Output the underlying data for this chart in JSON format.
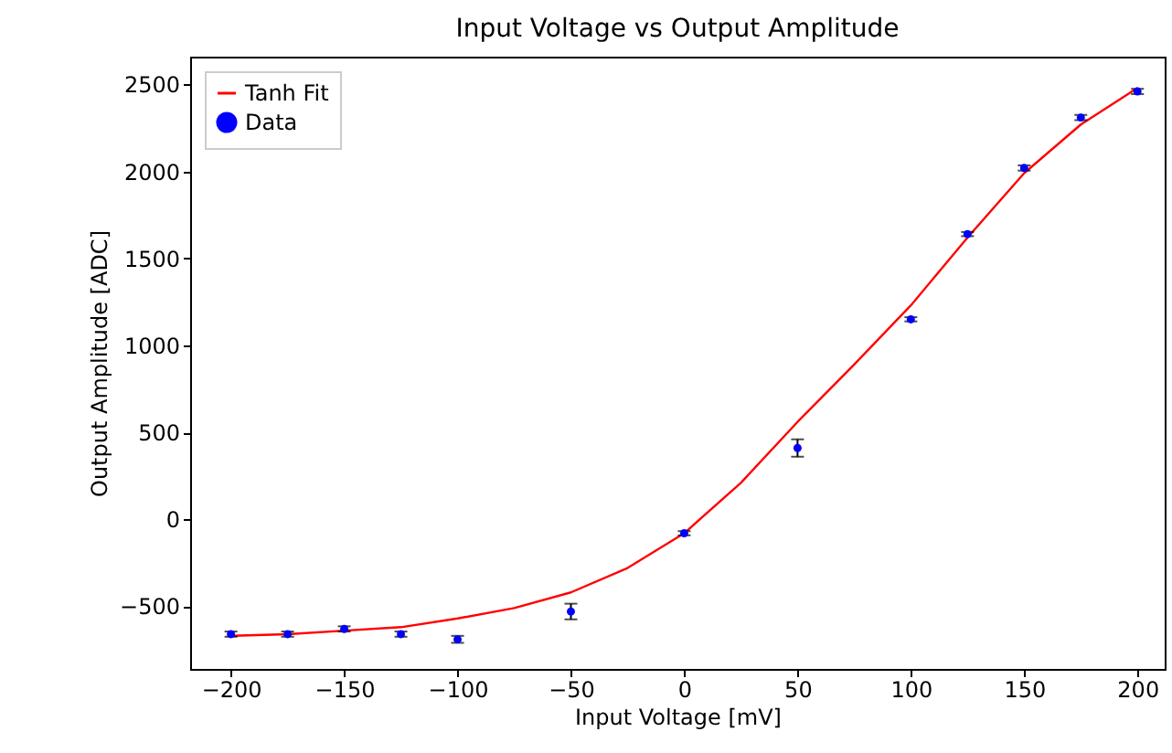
{
  "chart_data": {
    "type": "scatter",
    "title": "Input Voltage vs Output Amplitude",
    "xlabel": "Input Voltage [mV]",
    "ylabel": "Output Amplitude [ADC]",
    "xlim": [
      -218,
      212
    ],
    "xticks": [
      -200,
      -150,
      -100,
      -50,
      0,
      50,
      100,
      150,
      200
    ],
    "ylim": [
      -860,
      2660
    ],
    "yticks": [
      -500,
      0,
      500,
      1000,
      1500,
      2000,
      2500
    ],
    "grid": false,
    "legend": "top left",
    "series": [
      {
        "name": "Tanh Fit",
        "type": "line",
        "color": "#ff0000",
        "line_style": "solid",
        "x": [
          -200,
          -175,
          -150,
          -125,
          -100,
          -75,
          -50,
          -25,
          0,
          25,
          50,
          75,
          100,
          125,
          150,
          175,
          200
        ],
        "values": [
          -670,
          -660,
          -640,
          -620,
          -570,
          -510,
          -420,
          -280,
          -80,
          210,
          560,
          890,
          1230,
          1620,
          1990,
          2270,
          2480
        ]
      },
      {
        "name": "Data",
        "color": "#0000ff",
        "marker": "circle",
        "x": [
          -200,
          -175,
          -150,
          -125,
          -100,
          -50,
          0,
          50,
          100,
          125,
          150,
          175,
          200
        ],
        "values": [
          -660,
          -660,
          -630,
          -660,
          -690,
          -530,
          -80,
          410,
          1150,
          1640,
          2020,
          2310,
          2460
        ],
        "errors": [
          15,
          15,
          15,
          15,
          20,
          45,
          12,
          50,
          12,
          12,
          15,
          15,
          15
        ]
      }
    ]
  }
}
